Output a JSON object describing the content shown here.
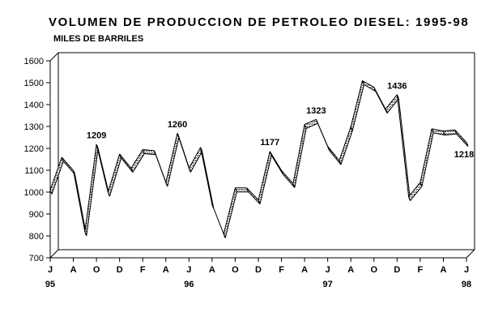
{
  "chart_data": {
    "type": "line",
    "title": "VOLUMEN DE PRODUCCION DE PETROLEO DIESEL: 1995-98",
    "ylabel": "MILES DE BARRILES",
    "xlabel": "",
    "ylim": [
      700,
      1600
    ],
    "yticks": [
      700,
      800,
      900,
      1000,
      1100,
      1200,
      1300,
      1400,
      1500,
      1600
    ],
    "grid": false,
    "legend": "none",
    "style": "3d-ribbon",
    "colors": {
      "ribbon_fill": "#666666",
      "ribbon_edge": "#000000",
      "frame": "#000000",
      "background": "#ffffff"
    },
    "x_tick_labels": [
      "J",
      "A",
      "O",
      "D",
      "F",
      "A",
      "J",
      "A",
      "O",
      "D",
      "F",
      "A",
      "J",
      "A",
      "O",
      "D",
      "F",
      "A",
      "J"
    ],
    "year_labels": [
      {
        "label": "95",
        "index": 0
      },
      {
        "label": "96",
        "index": 12
      },
      {
        "label": "97",
        "index": 24
      },
      {
        "label": "98",
        "index": 36
      }
    ],
    "x": [
      "1995-06",
      "1995-07",
      "1995-08",
      "1995-09",
      "1995-10",
      "1995-11",
      "1995-12",
      "1996-01",
      "1996-02",
      "1996-03",
      "1996-04",
      "1996-05",
      "1996-06",
      "1996-07",
      "1996-08",
      "1996-09",
      "1996-10",
      "1996-11",
      "1996-12",
      "1997-01",
      "1997-02",
      "1997-03",
      "1997-04",
      "1997-05",
      "1997-06",
      "1997-07",
      "1997-08",
      "1997-09",
      "1997-10",
      "1997-11",
      "1997-12",
      "1998-01",
      "1998-02",
      "1998-03",
      "1998-04",
      "1998-05",
      "1998-06"
    ],
    "series": [
      {
        "values": [
          1000,
          1150,
          1090,
          810,
          1209,
          990,
          1165,
          1100,
          1185,
          1180,
          1035,
          1260,
          1100,
          1195,
          935,
          800,
          1010,
          1010,
          955,
          1177,
          1090,
          1030,
          1300,
          1323,
          1200,
          1135,
          1290,
          1500,
          1470,
          1370,
          1436,
          970,
          1035,
          1280,
          1270,
          1275,
          1218
        ]
      }
    ],
    "annotations": [
      {
        "text": "1209",
        "index": 4
      },
      {
        "text": "1260",
        "index": 11
      },
      {
        "text": "1177",
        "index": 19
      },
      {
        "text": "1323",
        "index": 23
      },
      {
        "text": "1436",
        "index": 30
      },
      {
        "text": "1218",
        "index": 36
      }
    ]
  }
}
